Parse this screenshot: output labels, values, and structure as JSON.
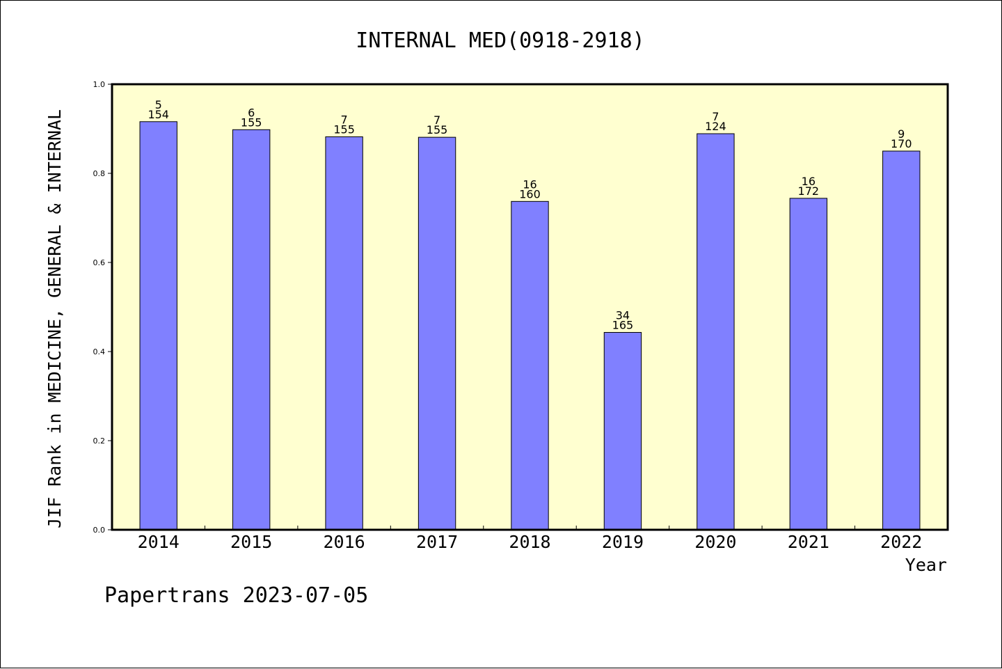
{
  "chart_data": {
    "type": "bar",
    "title": "INTERNAL MED(0918-2918)",
    "xlabel": "Year",
    "ylabel": "JIF Rank in MEDICINE, GENERAL & INTERNAL",
    "ylim": [
      0,
      1.0
    ],
    "yticks": [
      "0.0",
      "0.2",
      "0.4",
      "0.6",
      "0.8",
      "1.0"
    ],
    "categories": [
      "2014",
      "2015",
      "2016",
      "2017",
      "2018",
      "2019",
      "2020",
      "2021",
      "2022"
    ],
    "values": [
      0.916,
      0.898,
      0.882,
      0.881,
      0.737,
      0.443,
      0.889,
      0.744,
      0.85
    ],
    "rank_labels": [
      "5",
      "6",
      "7",
      "7",
      "16",
      "34",
      "7",
      "16",
      "9"
    ],
    "total_labels": [
      "154",
      "155",
      "155",
      "155",
      "160",
      "165",
      "124",
      "172",
      "170"
    ],
    "bar_color": "#8080ff",
    "plot_background": "#ffffd0",
    "grid": false,
    "legend": "none"
  },
  "footer": {
    "watermark": "Papertrans 2023-07-05"
  }
}
